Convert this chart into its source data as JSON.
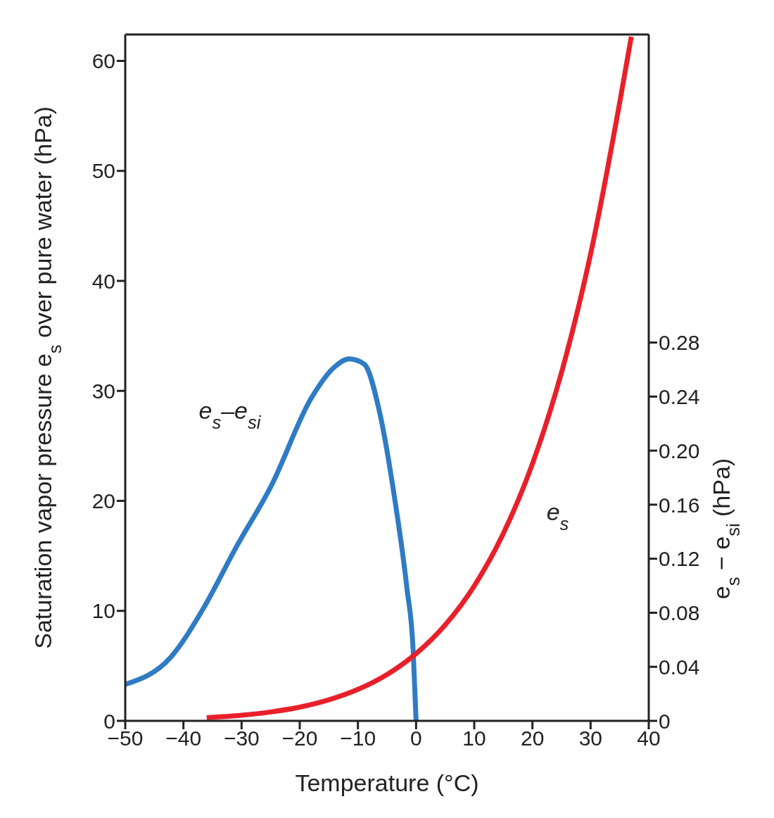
{
  "chart_data": {
    "type": "line",
    "xlabel": "Temperature (°C)",
    "ylabel": "Saturation vapor pressure e$_{s}$ over pure water (hPa)",
    "y2label": "e$_{s}$ − e$_{si}$ (hPa)",
    "xlim": [
      -50,
      40
    ],
    "xticks": [
      {
        "value": -50,
        "label": "−50"
      },
      {
        "value": -40,
        "label": "−40"
      },
      {
        "value": -30,
        "label": "−30"
      },
      {
        "value": -20,
        "label": "−20"
      },
      {
        "value": -10,
        "label": "−10"
      },
      0,
      10,
      20,
      30,
      40
    ],
    "ylim": [
      0,
      62.4
    ],
    "yticks": [
      0,
      10,
      20,
      30,
      40,
      50,
      60
    ],
    "y2lim": [
      0,
      0.508
    ],
    "y2ticks": [
      {
        "value": 0,
        "label": "0"
      },
      {
        "value": 0.04,
        "label": "0.04"
      },
      {
        "value": 0.08,
        "label": "0.08"
      },
      {
        "value": 0.12,
        "label": "0.12"
      },
      {
        "value": 0.16,
        "label": "0.16"
      },
      {
        "value": 0.2,
        "label": "0.20"
      },
      {
        "value": 0.24,
        "label": "0.24"
      },
      {
        "value": 0.28,
        "label": "0.28"
      }
    ],
    "marker": "none",
    "line_style": "solid",
    "series": [
      {
        "name": "e$_{s}$–e$_{si}$",
        "color": "#2f7bc4",
        "axis": "y2",
        "x": [
          -50,
          -42.2,
          -36.6,
          -31,
          -24.9,
          -18,
          -14,
          -11.5,
          -8.9,
          -6.3,
          -3.7,
          -1.6,
          -0.5,
          0
        ],
        "values": [
          0.027,
          0.047,
          0.083,
          0.128,
          0.174,
          0.239,
          0.262,
          0.268,
          0.264,
          0.229,
          0.165,
          0.099,
          0.052,
          0
        ]
      },
      {
        "name": "e$_{s}$",
        "color": "#e8202a",
        "x": [
          -36,
          -30,
          -25,
          -20,
          -15,
          -10,
          -5,
          0,
          5,
          10,
          15,
          20,
          25,
          30,
          35,
          37
        ],
        "values": [
          0.29,
          0.51,
          0.81,
          1.25,
          1.91,
          2.86,
          4.21,
          6.11,
          8.72,
          12.27,
          17.04,
          23.37,
          31.67,
          42.43,
          56.2,
          62.2
        ]
      }
    ]
  }
}
